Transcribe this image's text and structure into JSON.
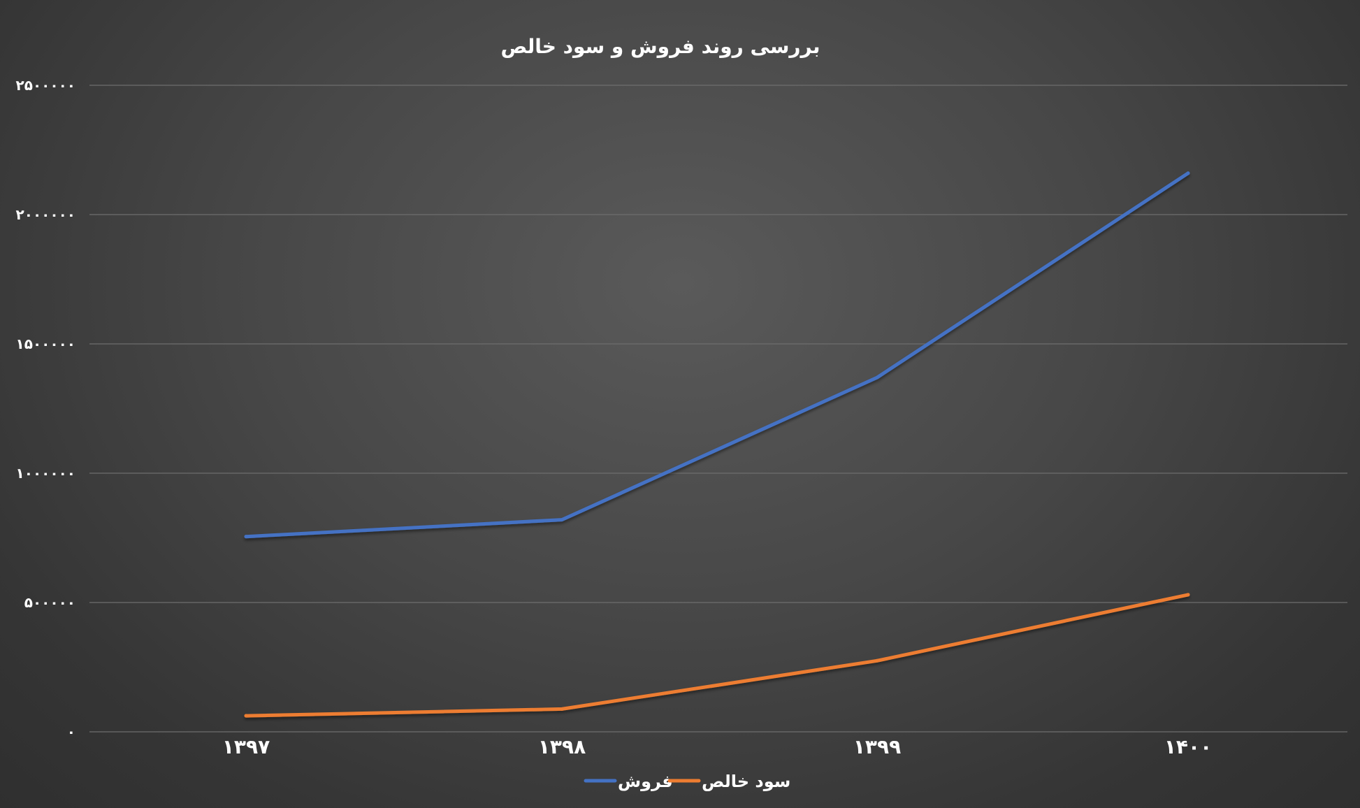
{
  "chart_data": {
    "type": "line",
    "title": "بررسی روند فروش و سود خالص",
    "xlabel": "",
    "ylabel": "",
    "categories": [
      "۱۳۹۷",
      "۱۳۹۸",
      "۱۳۹۹",
      "۱۴۰۰"
    ],
    "y_ticks": [
      0,
      500000,
      1000000,
      1500000,
      2000000,
      2500000
    ],
    "y_tick_labels": [
      "۰",
      "۵۰۰۰۰۰",
      "۱۰۰۰۰۰۰",
      "۱۵۰۰۰۰۰",
      "۲۰۰۰۰۰۰",
      "۲۵۰۰۰۰۰"
    ],
    "ylim": [
      0,
      2500000
    ],
    "grid": true,
    "legend_position": "bottom",
    "series": [
      {
        "name": "فروش",
        "color": "#4472c4",
        "values": [
          755000,
          820000,
          1370000,
          2160000
        ]
      },
      {
        "name": "سود خالص",
        "color": "#ed7d31",
        "values": [
          62000,
          88000,
          275000,
          530000
        ]
      }
    ]
  }
}
